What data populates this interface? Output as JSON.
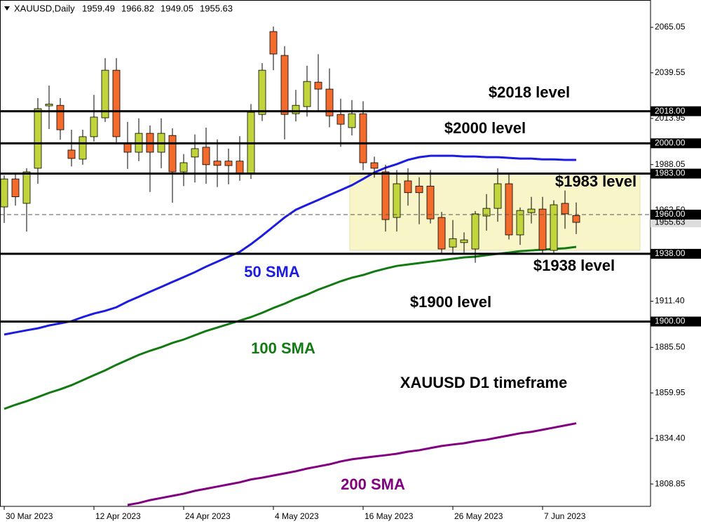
{
  "chart_data": {
    "type": "candlestick",
    "symbol": "XAUUSD,Daily",
    "title": "XAUUSD D1 timeframe",
    "categories": [
      "30 Mar 2023",
      null,
      null,
      null,
      null,
      null,
      null,
      null,
      "12 Apr 2023",
      null,
      null,
      null,
      null,
      null,
      null,
      null,
      "24 Apr 2023",
      null,
      null,
      null,
      null,
      null,
      null,
      null,
      "4 May 2023",
      null,
      null,
      null,
      null,
      null,
      null,
      null,
      "16 May 2023",
      null,
      null,
      null,
      null,
      null,
      null,
      null,
      "26 May 2023",
      null,
      null,
      null,
      null,
      null,
      null,
      null,
      "7 Jun 2023",
      null,
      null,
      null
    ],
    "open": [
      1964.3,
      1980.0,
      1966.3,
      1986.0,
      2021.0,
      2021.3,
      1996.2,
      1991.1,
      2003.7,
      2014.3,
      2041.0,
      1999.7,
      1995.0,
      2005.6,
      1995.0,
      2004.4,
      1984.0,
      1992.3,
      1997.8,
      1990.0,
      1990.0,
      1990.0,
      1982.8,
      2016.2,
      2062.7,
      2049.3,
      2016.6,
      2020.6,
      2034.3,
      2030.4,
      2016.2,
      2008.8,
      2016.6,
      1989.1,
      1984.0,
      1958.4,
      1978.9,
      1976.0,
      1976.0,
      1958.4,
      1941.8,
      1944.3,
      1940.7,
      1959.2,
      1963.5,
      1977.3,
      1948.6,
      1961.1,
      1963.1,
      1939.9,
      1966.3,
      1959.49
    ],
    "high": [
      1982.0,
      1983.0,
      1986.0,
      2025.3,
      2032.4,
      2025.3,
      2007.6,
      2007.6,
      2027.2,
      2047.8,
      2047.8,
      2012.0,
      2014.0,
      2010.0,
      2014.0,
      2008.4,
      1994.0,
      2005.0,
      2008.8,
      2002.2,
      1997.0,
      2004.0,
      2022.0,
      2045.0,
      2065.5,
      2054.5,
      2030.0,
      2043.5,
      2050.0,
      2042.0,
      2025.0,
      2024.3,
      2023.6,
      1992.5,
      1988.0,
      1985.0,
      1986.0,
      1981.0,
      1985.0,
      1961.5,
      1957.0,
      1950.0,
      1962.0,
      1971.5,
      1986.0,
      1983.0,
      1964.0,
      1970.0,
      1970.0,
      1968.0,
      1973.5,
      1966.82
    ],
    "low": [
      1955.3,
      1965.0,
      1950.5,
      1977.3,
      2008.0,
      2002.0,
      1987.0,
      1988.0,
      2001.0,
      2012.0,
      2000.0,
      1985.6,
      1990.0,
      1972.7,
      1986.0,
      1966.7,
      1976.0,
      1978.0,
      1977.3,
      1975.5,
      1977.0,
      1979.0,
      1980.0,
      2012.5,
      2041.0,
      2002.2,
      2012.3,
      2015.0,
      2018.0,
      2009.0,
      1998.0,
      2004.4,
      1985.0,
      1980.7,
      1950.5,
      1950.5,
      1965.0,
      1954.6,
      1955.0,
      1938.5,
      1937.4,
      1938.6,
      1933.0,
      1951.0,
      1956.0,
      1946.0,
      1943.0,
      1955.0,
      1938.0,
      1937.6,
      1952.0,
      1949.05
    ],
    "close": [
      1980.0,
      1970.0,
      1984.0,
      2019.4,
      2022.0,
      2007.6,
      1991.5,
      2003.7,
      2014.7,
      2041.0,
      2003.7,
      1995.0,
      2005.6,
      1995.0,
      2005.6,
      1984.0,
      1989.1,
      1997.0,
      1988.0,
      1987.6,
      1987.5,
      1983.2,
      2017.4,
      2041.0,
      2050.1,
      2016.2,
      2021.3,
      2034.7,
      2030.4,
      2015.4,
      2010.7,
      2016.6,
      1989.1,
      1986.0,
      1957.2,
      1977.3,
      1972.3,
      1972.3,
      1957.6,
      1940.7,
      1946.5,
      1945.8,
      1960.4,
      1963.5,
      1977.3,
      1948.6,
      1962.3,
      1963.1,
      1940.3,
      1965.5,
      1960.4,
      1955.63
    ],
    "up_color": "#c2d43c",
    "down_color": "#f26b2c",
    "series": [
      {
        "name": "50 SMA",
        "color": "#1c1ce0",
        "values": [
          1892.7,
          1893.9,
          1895.1,
          1896.2,
          1897.8,
          1899.0,
          1900.2,
          1902.5,
          1904.5,
          1906.0,
          1908.0,
          1911.2,
          1913.9,
          1916.7,
          1919.4,
          1922.2,
          1924.9,
          1927.7,
          1930.8,
          1933.6,
          1936.4,
          1939.1,
          1943.4,
          1948.2,
          1953.3,
          1958.4,
          1962.7,
          1965.5,
          1968.2,
          1971.0,
          1973.7,
          1976.5,
          1980.0,
          1983.6,
          1986.3,
          1988.3,
          1990.7,
          1992.2,
          1993.0,
          1993.0,
          1993.0,
          1992.6,
          1992.6,
          1992.2,
          1992.2,
          1991.8,
          1991.4,
          1991.4,
          1991.0,
          1991.0,
          1990.7,
          1990.7
        ]
      },
      {
        "name": "100 SMA",
        "color": "#137a13",
        "values": [
          1851.0,
          1853.3,
          1855.3,
          1857.6,
          1860.0,
          1862.0,
          1864.3,
          1867.1,
          1869.9,
          1872.6,
          1875.7,
          1878.5,
          1881.3,
          1883.6,
          1885.6,
          1888.0,
          1889.9,
          1892.3,
          1894.7,
          1896.6,
          1898.6,
          1900.5,
          1902.5,
          1904.9,
          1907.6,
          1910.0,
          1912.8,
          1915.1,
          1917.9,
          1920.2,
          1922.6,
          1924.6,
          1926.1,
          1928.1,
          1929.7,
          1931.2,
          1932.0,
          1932.8,
          1933.6,
          1934.4,
          1935.2,
          1936.0,
          1936.4,
          1937.2,
          1938.0,
          1938.7,
          1939.5,
          1939.9,
          1940.3,
          1940.7,
          1941.1,
          1941.9
        ]
      },
      {
        "name": "200 SMA",
        "color": "#800080",
        "values": [
          null,
          null,
          null,
          null,
          null,
          null,
          null,
          null,
          null,
          null,
          null,
          1797.1,
          1798.2,
          1799.8,
          1801.0,
          1802.2,
          1803.4,
          1805.0,
          1806.2,
          1807.4,
          1808.6,
          1809.8,
          1811.4,
          1812.4,
          1813.6,
          1814.8,
          1816.0,
          1817.5,
          1818.7,
          1819.9,
          1821.5,
          1822.7,
          1823.5,
          1824.3,
          1825.0,
          1825.8,
          1827.0,
          1827.8,
          1829.0,
          1830.2,
          1831.0,
          1831.7,
          1832.9,
          1833.7,
          1834.9,
          1836.1,
          1837.3,
          1838.1,
          1839.3,
          1840.5,
          1841.7,
          1842.9
        ]
      }
    ],
    "ylim": [
      1796.3,
      2080.4
    ],
    "yticks": [
      2065.05,
      2039.55,
      2013.95,
      1988.05,
      {
        "value": 1962.5,
        "label": "1962.50"
      },
      {
        "value": 1911.4,
        "label": "1911.40"
      },
      {
        "value": 1885.5,
        "label": "1885.50"
      },
      1859.95,
      {
        "value": 1834.4,
        "label": "1834.40"
      },
      1808.85
    ],
    "zone": [
      1940,
      1983
    ],
    "levels": [
      {
        "value": 2018,
        "label": "2018.00",
        "text": "$2018 level"
      },
      {
        "value": 2000,
        "label": "2000.00",
        "text": "$2000 level"
      },
      {
        "value": 1983,
        "label": "1983.00",
        "text": "$1983 level"
      },
      {
        "value": 1938,
        "label": "1938.00",
        "text": "$1938 level"
      },
      {
        "value": 1900,
        "label": "1900.00",
        "text": "$1900 level"
      }
    ],
    "current_price": 1955.63,
    "marker_level": {
      "value": 1960,
      "label": "1960.00"
    }
  }
}
